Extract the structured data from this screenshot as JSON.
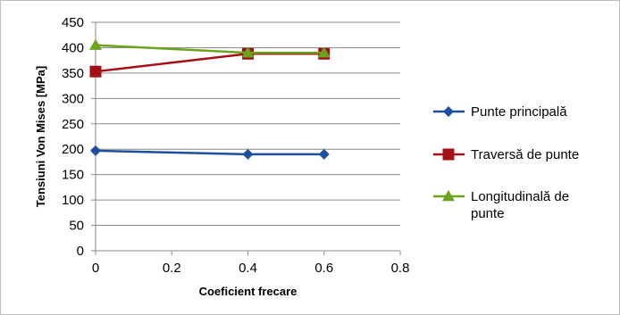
{
  "chart_data": {
    "type": "line",
    "title": "",
    "xlabel": "Coeficient frecare",
    "ylabel": "Tensiuni Von Mises [MPa]",
    "xlim": [
      0,
      0.8
    ],
    "ylim": [
      0,
      450
    ],
    "x_ticks": [
      "0",
      "0.2",
      "0.4",
      "0.6",
      "0.8"
    ],
    "y_ticks": [
      "0",
      "50",
      "100",
      "150",
      "200",
      "250",
      "300",
      "350",
      "400",
      "450"
    ],
    "grid": "horizontal",
    "legend_position": "right",
    "series": [
      {
        "name": "Punte principală",
        "legend_lines": [
          "Punte principală"
        ],
        "color": "#1F4E9C",
        "marker": "diamond",
        "x": [
          0,
          0.4,
          0.6
        ],
        "y": [
          197,
          190,
          190
        ]
      },
      {
        "name": "Traversă de punte",
        "legend_lines": [
          "Traversă de punte"
        ],
        "color": "#A50F15",
        "marker": "square",
        "x": [
          0,
          0.4,
          0.6
        ],
        "y": [
          353,
          388,
          388
        ]
      },
      {
        "name": "Longitudinală de punte",
        "legend_lines": [
          "Longitudinală de",
          "punte"
        ],
        "color": "#6BA31F",
        "marker": "triangle",
        "x": [
          0,
          0.4,
          0.6
        ],
        "y": [
          405,
          390,
          390
        ]
      }
    ]
  }
}
